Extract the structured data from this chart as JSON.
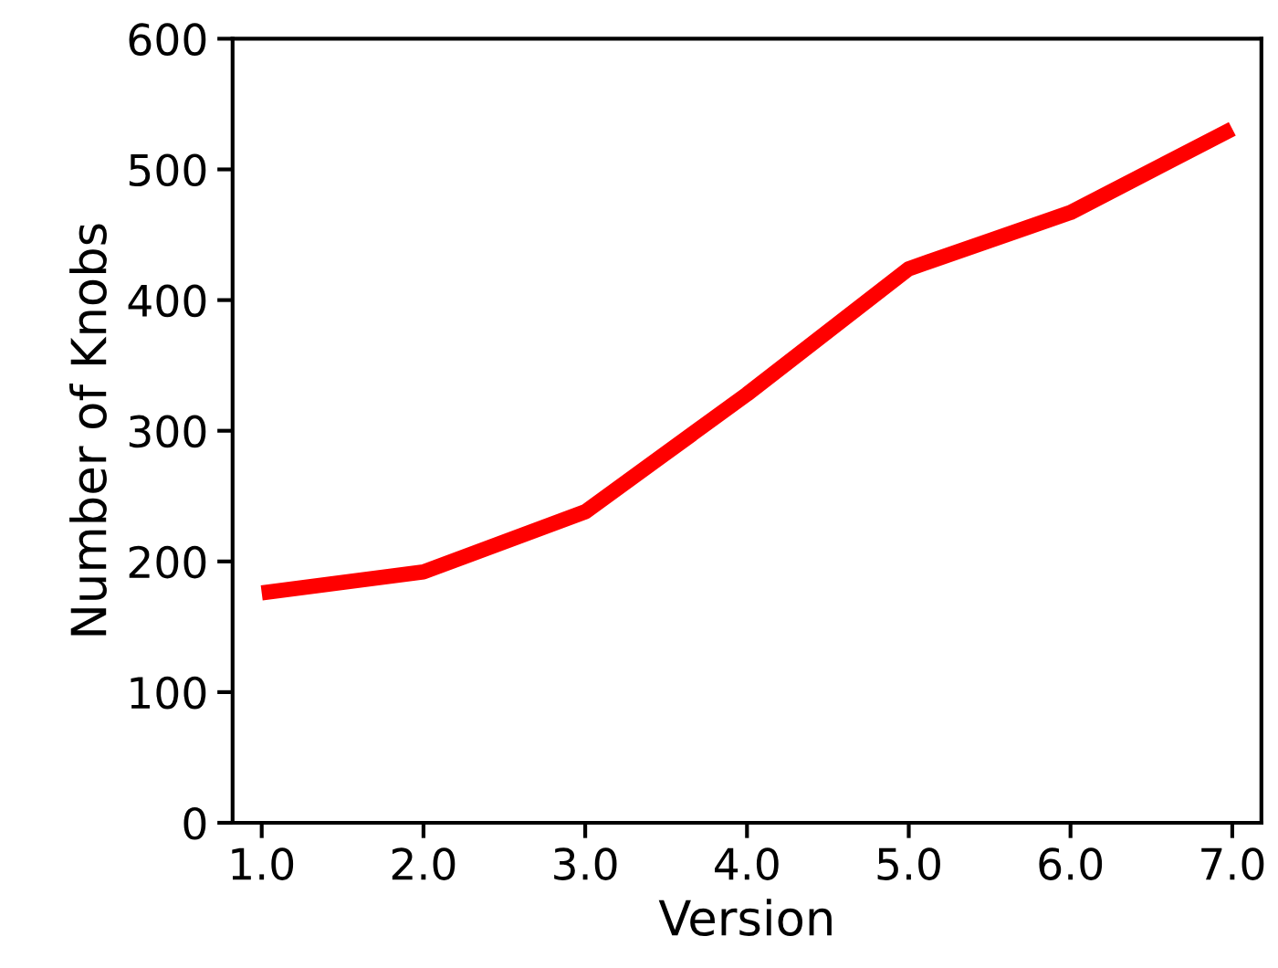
{
  "chart_data": {
    "type": "line",
    "xlabel": "Version",
    "ylabel": "Number of Knobs",
    "x": [
      1,
      2,
      3,
      4,
      5,
      6,
      7
    ],
    "series": [
      {
        "color": "#ff0000",
        "values": [
          176,
          192,
          238,
          328,
          424,
          467,
          531
        ]
      }
    ],
    "xlim": [
      0.82,
      7.18
    ],
    "ylim": [
      0,
      600
    ],
    "xticks": [
      {
        "value": 1,
        "label": "1.0"
      },
      {
        "value": 2,
        "label": "2.0"
      },
      {
        "value": 3,
        "label": "3.0"
      },
      {
        "value": 4,
        "label": "4.0"
      },
      {
        "value": 5,
        "label": "5.0"
      },
      {
        "value": 6,
        "label": "6.0"
      },
      {
        "value": 7,
        "label": "7.0"
      }
    ],
    "yticks": [
      0,
      100,
      200,
      300,
      400,
      500,
      600
    ],
    "grid": false,
    "legend": false,
    "marker": "none",
    "line_style": "solid"
  }
}
